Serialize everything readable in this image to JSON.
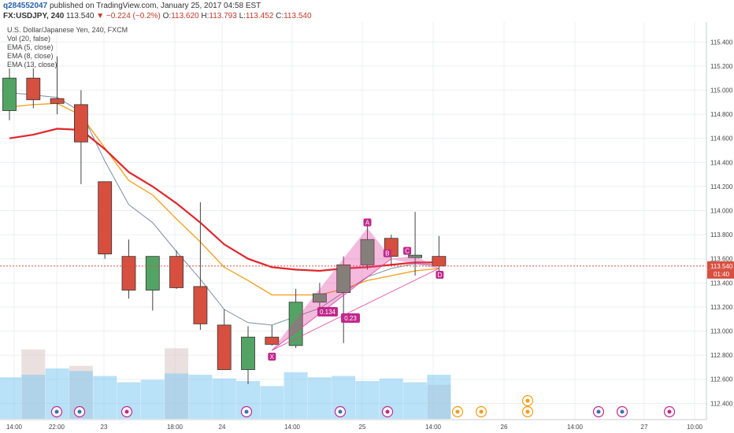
{
  "header": {
    "username": "q284552047",
    "published_text": "published on TradingView.com, January 25, 2017 04:58 EST",
    "symbol": "FX:USDJPY, 240",
    "last_price": "113.540",
    "change": "▼ −0.224 (−0.2%)",
    "ohlc": {
      "o_label": "O:",
      "o": "113.620",
      "h_label": "H:",
      "h": "113.793",
      "l_label": "L:",
      "l": "113.452",
      "c_label": "C:",
      "c": "113.540"
    }
  },
  "legend": {
    "title": "U.S. Dollar/Japanese Yen, 240, FXCM",
    "items": [
      "Vol (20, false)",
      "EMA (5, close)",
      "EMA (8, close)",
      "EMA (13, close)"
    ]
  },
  "colors": {
    "up": "#53a464",
    "down": "#d74f3f",
    "ema5": "#7b8ea6",
    "ema8": "#f39c12",
    "ema13": "#e0262a",
    "pattern": "#e040a0",
    "vol": "#7fc8f0",
    "label_bg": "#c0288c"
  },
  "price_axis": {
    "labels": [
      "115.400",
      "115.200",
      "115.000",
      "114.800",
      "114.600",
      "114.400",
      "114.200",
      "114.000",
      "113.800",
      "113.600",
      "113.400",
      "113.200",
      "113.000",
      "112.800",
      "112.600",
      "112.400"
    ],
    "current_price": "113.540",
    "countdown": "01:40"
  },
  "time_axis": {
    "labels": [
      "14:00",
      "22:00",
      "23",
      "18:00",
      "24",
      "14:00",
      "25",
      "14:00",
      "26",
      "14:00",
      "27",
      "10:00"
    ]
  },
  "pattern": {
    "points": [
      "X",
      "A",
      "B",
      "C",
      "D"
    ],
    "ratios": [
      "0.134",
      "0.23"
    ]
  },
  "chart_data": {
    "type": "candlestick",
    "ylim": [
      112.35,
      115.5
    ],
    "candles": [
      {
        "o": 114.83,
        "h": 115.18,
        "l": 114.75,
        "c": 115.1
      },
      {
        "o": 115.1,
        "h": 115.18,
        "l": 114.85,
        "c": 114.92
      },
      {
        "o": 114.93,
        "h": 115.28,
        "l": 114.8,
        "c": 114.89
      },
      {
        "o": 114.88,
        "h": 115.0,
        "l": 114.22,
        "c": 114.57
      },
      {
        "o": 114.24,
        "h": 114.24,
        "l": 113.6,
        "c": 113.64
      },
      {
        "o": 113.62,
        "h": 113.76,
        "l": 113.27,
        "c": 113.34
      },
      {
        "o": 113.34,
        "h": 113.62,
        "l": 113.17,
        "c": 113.62
      },
      {
        "o": 113.62,
        "h": 113.67,
        "l": 113.35,
        "c": 113.36
      },
      {
        "o": 113.37,
        "h": 114.07,
        "l": 113.01,
        "c": 113.06
      },
      {
        "o": 113.05,
        "h": 113.18,
        "l": 112.68,
        "c": 112.68
      },
      {
        "o": 112.68,
        "h": 113.04,
        "l": 112.56,
        "c": 112.95
      },
      {
        "o": 112.95,
        "h": 113.05,
        "l": 112.88,
        "c": 112.89
      },
      {
        "o": 112.88,
        "h": 113.35,
        "l": 112.86,
        "c": 113.24
      },
      {
        "o": 113.24,
        "h": 113.4,
        "l": 113.16,
        "c": 113.31
      },
      {
        "o": 113.32,
        "h": 113.62,
        "l": 112.9,
        "c": 113.55
      },
      {
        "o": 113.55,
        "h": 113.88,
        "l": 113.51,
        "c": 113.76
      },
      {
        "o": 113.77,
        "h": 113.8,
        "l": 113.55,
        "c": 113.62
      },
      {
        "o": 113.61,
        "h": 113.99,
        "l": 113.46,
        "c": 113.63
      },
      {
        "o": 113.62,
        "h": 113.79,
        "l": 113.45,
        "c": 113.54
      }
    ],
    "volume_bars": [
      3.3,
      3.5,
      4.0,
      3.8,
      3.4,
      2.9,
      3.1,
      3.6,
      3.5,
      3.2,
      3.0,
      2.6,
      3.7,
      3.3,
      3.4,
      3.0,
      3.2,
      2.9,
      3.5
    ],
    "volume_shadow": [
      0.0,
      5.5,
      0.0,
      4.2,
      0.0,
      0.0,
      0.0,
      5.6,
      0.0,
      0.0,
      0.0,
      0.0,
      0.0,
      0.0,
      0.0,
      0.0,
      0.0,
      0.0,
      2.7
    ],
    "ema5": [
      114.98,
      114.96,
      114.94,
      114.82,
      114.41,
      114.05,
      113.9,
      113.66,
      113.43,
      113.18,
      113.07,
      113.05,
      113.12,
      113.19,
      113.32,
      113.45,
      113.52,
      113.56,
      113.55
    ],
    "ema8": [
      114.86,
      114.88,
      114.89,
      114.79,
      114.52,
      114.25,
      114.13,
      113.93,
      113.74,
      113.53,
      113.42,
      113.3,
      113.3,
      113.3,
      113.35,
      113.42,
      113.46,
      113.5,
      113.52
    ],
    "ema13": [
      114.6,
      114.63,
      114.68,
      114.67,
      114.51,
      114.32,
      114.2,
      114.06,
      113.9,
      113.72,
      113.6,
      113.53,
      113.51,
      113.5,
      113.52,
      113.53,
      113.55,
      113.57,
      113.57
    ]
  }
}
